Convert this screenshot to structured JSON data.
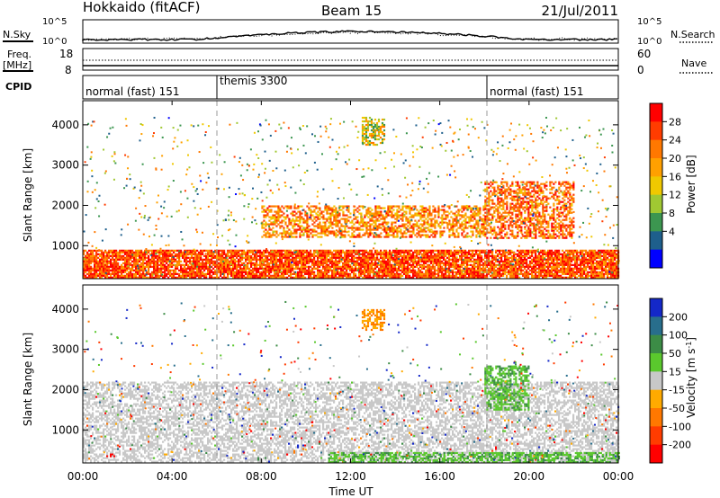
{
  "header": {
    "station": "Hokkaido (fitACF)",
    "beam": "Beam 15",
    "date": "21/Jul/2011"
  },
  "noise_panel": {
    "left_label": "N.Sky",
    "right_label": "N.Search",
    "left_ticks": [
      "10^5",
      "10^0"
    ],
    "right_ticks": [
      "10^5",
      "10^0"
    ]
  },
  "freq_panel": {
    "left_label_1": "Freq.",
    "left_label_2": "[MHz]",
    "left_ticks": [
      "18",
      "8"
    ],
    "right_label": "Nave",
    "right_ticks": [
      "60",
      "0"
    ]
  },
  "cpid_panel": {
    "label": "CPID",
    "segments": [
      {
        "name": "normal (fast) 151",
        "start_hr": 0,
        "end_hr": 6
      },
      {
        "name": "themis 3300",
        "start_hr": 6,
        "end_hr": 18
      },
      {
        "name": "normal (fast) 151",
        "start_hr": 18,
        "end_hr": 24
      }
    ]
  },
  "colorbars": {
    "power": {
      "label": "Power [dB]",
      "ticks": [
        "28",
        "24",
        "20",
        "16",
        "12",
        "8",
        "4"
      ],
      "colors": [
        "#ff0000",
        "#ff3c00",
        "#ff7800",
        "#ffa000",
        "#f0c800",
        "#a0c832",
        "#3c9650",
        "#1e5f8c",
        "#0000ff"
      ]
    },
    "velocity": {
      "label": "Velocity [m s",
      "label_sup": "-1",
      "label_end": "]",
      "ticks": [
        "200",
        "100",
        "50",
        "15",
        "-15",
        "-50",
        "-100",
        "-200"
      ],
      "colors": [
        "#1428c8",
        "#286e8c",
        "#3c8c46",
        "#5ac82d",
        "#c8c8c8",
        "#ffaa00",
        "#ff7800",
        "#ff3c00",
        "#ff0000"
      ]
    }
  },
  "axes": {
    "xlabel": "Time UT",
    "ylabel": "Slant Range [km]",
    "x_ticks": [
      "00:00",
      "04:00",
      "08:00",
      "12:00",
      "16:00",
      "20:00",
      "00:00"
    ]
  },
  "chart_data": [
    {
      "type": "heatmap",
      "title": "Power",
      "xlabel": "Time UT",
      "ylabel": "Slant Range [km]",
      "xlim_hours": [
        0,
        24
      ],
      "ylim_km": [
        180,
        4600
      ],
      "y_ticks": [
        1000,
        2000,
        3000,
        4000
      ],
      "colorbar_ticks_dB": [
        4,
        8,
        12,
        16,
        20,
        24,
        28
      ],
      "scatter_regions": [
        {
          "t_start": 0,
          "t_end": 24,
          "r_low": 200,
          "r_high": 900,
          "value_db": 26,
          "description": "strong near-range scatter"
        },
        {
          "t_start": 8,
          "t_end": 18,
          "r_low": 1200,
          "r_high": 2000,
          "value_db": 22
        },
        {
          "t_start": 18,
          "t_end": 22,
          "r_low": 1200,
          "r_high": 2600,
          "value_db": 24
        },
        {
          "t_start": 12.5,
          "t_end": 13.5,
          "r_low": 3500,
          "r_high": 4200,
          "value_db": 16
        }
      ]
    },
    {
      "type": "heatmap",
      "title": "Velocity",
      "xlabel": "Time UT",
      "ylabel": "Slant Range [km]",
      "xlim_hours": [
        0,
        24
      ],
      "ylim_km": [
        180,
        4600
      ],
      "y_ticks": [
        1000,
        2000,
        3000,
        4000
      ],
      "colorbar_ticks_ms": [
        -200,
        -100,
        -50,
        -15,
        15,
        50,
        100,
        200
      ],
      "scatter_regions": [
        {
          "t_start": 0,
          "t_end": 24,
          "r_low": 200,
          "r_high": 2200,
          "value_ms": 0,
          "description": "ground scatter (grey)"
        },
        {
          "t_start": 11,
          "t_end": 24,
          "r_low": 200,
          "r_high": 450,
          "value_ms": 30
        },
        {
          "t_start": 18,
          "t_end": 20,
          "r_low": 1500,
          "r_high": 2600,
          "value_ms": 30
        },
        {
          "t_start": 12.5,
          "t_end": 13.5,
          "r_low": 3500,
          "r_high": 4000,
          "value_ms": -40
        }
      ]
    }
  ]
}
